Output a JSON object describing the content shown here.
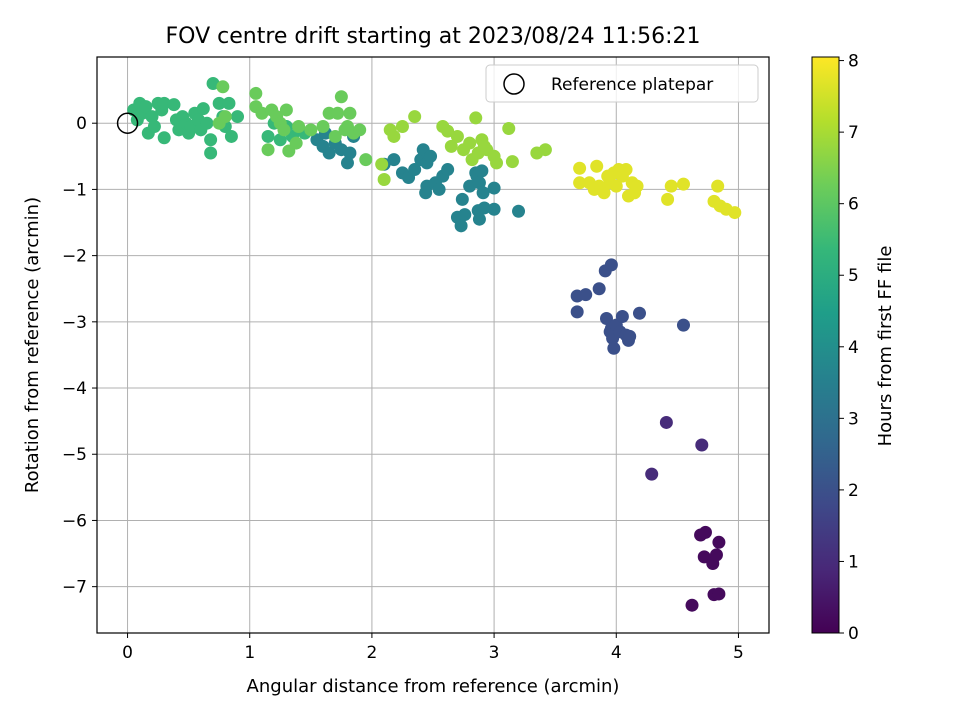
{
  "chart_data": {
    "type": "scatter",
    "title": "FOV centre drift starting at 2023/08/24 11:56:21",
    "xlabel": "Angular distance from reference (arcmin)",
    "ylabel": "Rotation from reference (arcmin)",
    "xlim": [
      -0.25,
      5.25
    ],
    "ylim": [
      -7.7,
      1.0
    ],
    "x_ticks": [
      "0",
      "1",
      "2",
      "3",
      "4",
      "5"
    ],
    "y_ticks": [
      "0",
      "−1",
      "−2",
      "−3",
      "−4",
      "−5",
      "−6",
      "−7"
    ],
    "grid": true,
    "legend": {
      "label": "Reference platepar",
      "placement": "top-right"
    },
    "reference_point": {
      "x": 0,
      "y": 0
    },
    "colorbar": {
      "label": "Hours from first FF file",
      "min": 0,
      "max": 8.05,
      "ticks": [
        "0",
        "1",
        "2",
        "3",
        "4",
        "5",
        "6",
        "7",
        "8"
      ],
      "colormap": "viridis"
    },
    "series": [
      {
        "hours": 0.2,
        "points": [
          [
            4.62,
            -7.28
          ],
          [
            4.8,
            -7.12
          ],
          [
            4.84,
            -7.11
          ],
          [
            4.72,
            -6.55
          ],
          [
            4.79,
            -6.65
          ],
          [
            4.82,
            -6.52
          ],
          [
            4.84,
            -6.33
          ],
          [
            4.69,
            -6.22
          ],
          [
            4.73,
            -6.18
          ]
        ]
      },
      {
        "hours": 1.0,
        "points": [
          [
            4.29,
            -5.3
          ],
          [
            4.41,
            -4.52
          ],
          [
            4.7,
            -4.86
          ]
        ]
      },
      {
        "hours": 2.0,
        "points": [
          [
            3.68,
            -2.85
          ],
          [
            3.68,
            -2.61
          ],
          [
            3.75,
            -2.59
          ],
          [
            3.86,
            -2.5
          ],
          [
            3.91,
            -2.23
          ],
          [
            3.96,
            -2.14
          ],
          [
            3.92,
            -2.95
          ],
          [
            3.95,
            -3.15
          ],
          [
            3.97,
            -3.25
          ],
          [
            3.98,
            -3.4
          ],
          [
            3.96,
            -3.1
          ],
          [
            4.0,
            -3.05
          ],
          [
            4.03,
            -3.15
          ],
          [
            4.05,
            -2.92
          ],
          [
            4.08,
            -3.2
          ],
          [
            4.1,
            -3.28
          ],
          [
            4.11,
            -3.22
          ],
          [
            4.19,
            -2.87
          ],
          [
            4.55,
            -3.05
          ]
        ]
      },
      {
        "hours": 3.6,
        "points": [
          [
            1.55,
            -0.25
          ],
          [
            1.6,
            -0.35
          ],
          [
            1.65,
            -0.45
          ],
          [
            1.7,
            -0.3
          ],
          [
            1.75,
            -0.4
          ],
          [
            1.8,
            -0.6
          ],
          [
            1.82,
            -0.45
          ],
          [
            1.85,
            -0.2
          ],
          [
            1.62,
            -0.15
          ],
          [
            2.1,
            -0.62
          ],
          [
            2.18,
            -0.55
          ],
          [
            2.25,
            -0.75
          ],
          [
            2.3,
            -0.82
          ],
          [
            2.35,
            -0.7
          ],
          [
            2.4,
            -0.55
          ],
          [
            2.42,
            -0.4
          ],
          [
            2.45,
            -0.6
          ],
          [
            2.48,
            -0.5
          ],
          [
            2.45,
            -0.95
          ],
          [
            2.44,
            -1.05
          ],
          [
            2.52,
            -0.9
          ],
          [
            2.55,
            -1.0
          ],
          [
            2.58,
            -0.8
          ],
          [
            2.62,
            -0.7
          ],
          [
            2.7,
            -1.42
          ],
          [
            2.73,
            -1.55
          ],
          [
            2.74,
            -1.15
          ],
          [
            2.76,
            -1.38
          ],
          [
            2.8,
            -0.95
          ],
          [
            2.85,
            -0.75
          ],
          [
            2.86,
            -0.8
          ],
          [
            2.88,
            -0.9
          ],
          [
            2.9,
            -0.72
          ],
          [
            2.87,
            -1.32
          ],
          [
            2.88,
            -1.45
          ],
          [
            2.92,
            -1.28
          ],
          [
            2.91,
            -1.05
          ],
          [
            3.0,
            -0.98
          ],
          [
            3.0,
            -1.3
          ],
          [
            3.2,
            -1.33
          ]
        ]
      },
      {
        "hours": 5.4,
        "points": [
          [
            0.05,
            0.2
          ],
          [
            0.08,
            0.05
          ],
          [
            0.1,
            0.3
          ],
          [
            0.12,
            0.15
          ],
          [
            0.15,
            0.25
          ],
          [
            0.17,
            -0.15
          ],
          [
            0.2,
            0.1
          ],
          [
            0.22,
            -0.05
          ],
          [
            0.25,
            0.3
          ],
          [
            0.28,
            0.2
          ],
          [
            0.3,
            0.3
          ],
          [
            0.3,
            -0.22
          ],
          [
            0.38,
            0.28
          ],
          [
            0.4,
            0.05
          ],
          [
            0.42,
            -0.1
          ],
          [
            0.45,
            0.1
          ],
          [
            0.48,
            0.0
          ],
          [
            0.5,
            -0.15
          ],
          [
            0.52,
            -0.05
          ],
          [
            0.55,
            0.15
          ],
          [
            0.58,
            0.05
          ],
          [
            0.6,
            -0.1
          ],
          [
            0.62,
            0.22
          ],
          [
            0.65,
            0.0
          ],
          [
            0.68,
            -0.25
          ],
          [
            0.68,
            -0.45
          ],
          [
            0.7,
            0.6
          ],
          [
            0.75,
            0.3
          ],
          [
            0.78,
            0.1
          ],
          [
            0.8,
            -0.05
          ],
          [
            0.83,
            0.3
          ],
          [
            0.85,
            -0.2
          ],
          [
            0.9,
            0.1
          ],
          [
            1.15,
            -0.2
          ],
          [
            1.2,
            0.0
          ],
          [
            1.25,
            -0.25
          ],
          [
            1.3,
            -0.05
          ],
          [
            1.35,
            -0.2
          ],
          [
            1.4,
            -0.1
          ],
          [
            1.45,
            -0.15
          ]
        ]
      },
      {
        "hours": 6.2,
        "points": [
          [
            0.75,
            0.0
          ],
          [
            0.78,
            0.55
          ],
          [
            0.8,
            0.1
          ],
          [
            1.05,
            0.45
          ],
          [
            1.05,
            0.25
          ],
          [
            1.1,
            0.15
          ],
          [
            1.15,
            -0.4
          ],
          [
            1.18,
            0.2
          ],
          [
            1.22,
            0.1
          ],
          [
            1.25,
            0.0
          ],
          [
            1.28,
            -0.1
          ],
          [
            1.3,
            0.2
          ],
          [
            1.32,
            -0.42
          ],
          [
            1.38,
            -0.3
          ],
          [
            1.4,
            -0.05
          ],
          [
            1.5,
            -0.1
          ],
          [
            1.6,
            -0.05
          ],
          [
            1.65,
            0.15
          ],
          [
            1.7,
            -0.2
          ],
          [
            1.72,
            0.15
          ],
          [
            1.75,
            0.4
          ],
          [
            1.78,
            -0.1
          ],
          [
            1.8,
            -0.05
          ],
          [
            1.82,
            0.15
          ],
          [
            1.85,
            -0.15
          ],
          [
            1.9,
            -0.1
          ],
          [
            1.95,
            -0.55
          ]
        ]
      },
      {
        "hours": 6.8,
        "points": [
          [
            2.08,
            -0.62
          ],
          [
            2.1,
            -0.85
          ],
          [
            2.15,
            -0.1
          ],
          [
            2.18,
            -0.2
          ],
          [
            2.25,
            -0.05
          ],
          [
            2.35,
            0.1
          ],
          [
            2.58,
            -0.05
          ],
          [
            2.62,
            -0.12
          ],
          [
            2.65,
            -0.35
          ],
          [
            2.7,
            -0.2
          ],
          [
            2.75,
            -0.4
          ],
          [
            2.8,
            -0.3
          ],
          [
            2.82,
            -0.55
          ],
          [
            2.85,
            0.08
          ],
          [
            2.87,
            -0.45
          ],
          [
            2.9,
            -0.25
          ],
          [
            2.92,
            -0.35
          ],
          [
            2.94,
            -0.4
          ],
          [
            3.0,
            -0.5
          ],
          [
            3.02,
            -0.6
          ],
          [
            3.12,
            -0.08
          ],
          [
            3.15,
            -0.58
          ],
          [
            3.35,
            -0.45
          ],
          [
            3.42,
            -0.4
          ]
        ]
      },
      {
        "hours": 7.7,
        "points": [
          [
            3.7,
            -0.68
          ],
          [
            3.7,
            -0.9
          ],
          [
            3.78,
            -0.9
          ],
          [
            3.82,
            -1.0
          ],
          [
            3.84,
            -0.65
          ],
          [
            3.86,
            -0.95
          ],
          [
            3.9,
            -1.05
          ],
          [
            3.93,
            -0.8
          ],
          [
            3.95,
            -0.9
          ],
          [
            3.98,
            -0.75
          ],
          [
            4.0,
            -0.95
          ],
          [
            4.02,
            -0.7
          ],
          [
            4.05,
            -0.8
          ],
          [
            4.08,
            -0.7
          ],
          [
            4.1,
            -1.1
          ],
          [
            4.13,
            -0.9
          ],
          [
            4.15,
            -1.05
          ],
          [
            4.17,
            -0.95
          ],
          [
            4.42,
            -1.15
          ],
          [
            4.45,
            -0.95
          ],
          [
            4.55,
            -0.92
          ],
          [
            4.8,
            -1.18
          ],
          [
            4.83,
            -0.95
          ],
          [
            4.85,
            -1.25
          ],
          [
            4.9,
            -1.3
          ],
          [
            4.97,
            -1.35
          ]
        ]
      }
    ]
  }
}
